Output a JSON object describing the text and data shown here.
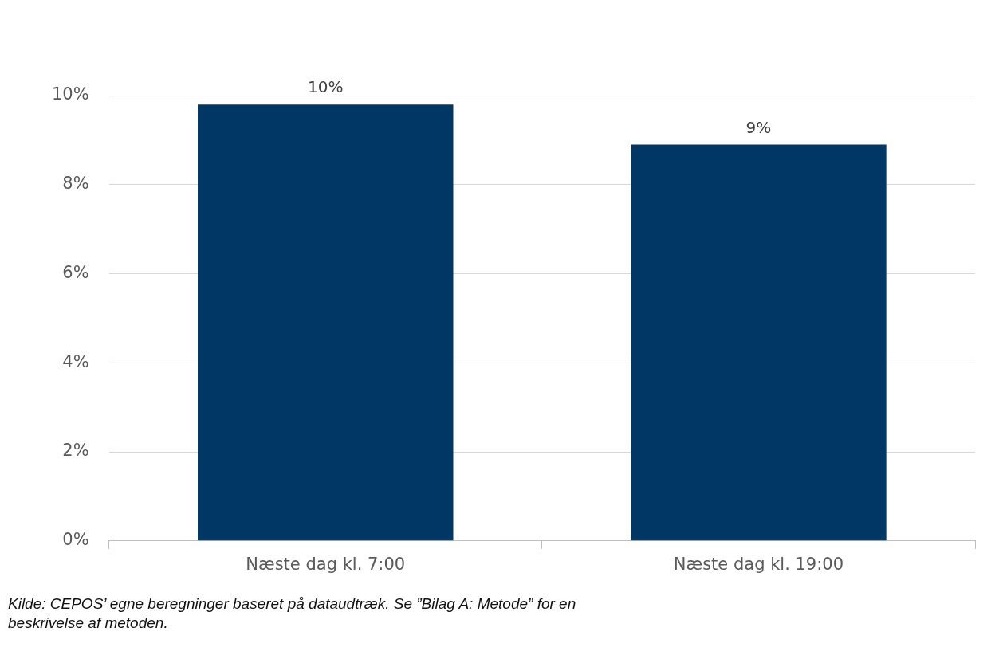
{
  "chart_data": {
    "type": "bar",
    "categories": [
      "Næste dag kl. 7:00",
      "Næste dag kl. 19:00"
    ],
    "series": [
      {
        "color": "#003764",
        "values": [
          9.8,
          8.9
        ],
        "value_labels": [
          "10%",
          "9%"
        ]
      }
    ],
    "ylim": [
      0,
      10
    ],
    "yticks": [
      {
        "value": 0,
        "label": "0%"
      },
      {
        "value": 2,
        "label": "2%"
      },
      {
        "value": 4,
        "label": "4%"
      },
      {
        "value": 6,
        "label": "6%"
      },
      {
        "value": 8,
        "label": "8%"
      },
      {
        "value": 10,
        "label": "10%"
      }
    ],
    "grid": "y",
    "legend": false,
    "annotations": [
      "Kilde: CEPOS’ egne beregninger baseret på dataudtræk. Se ”Bilag A: Metode” for en beskrivelse af metoden."
    ]
  }
}
